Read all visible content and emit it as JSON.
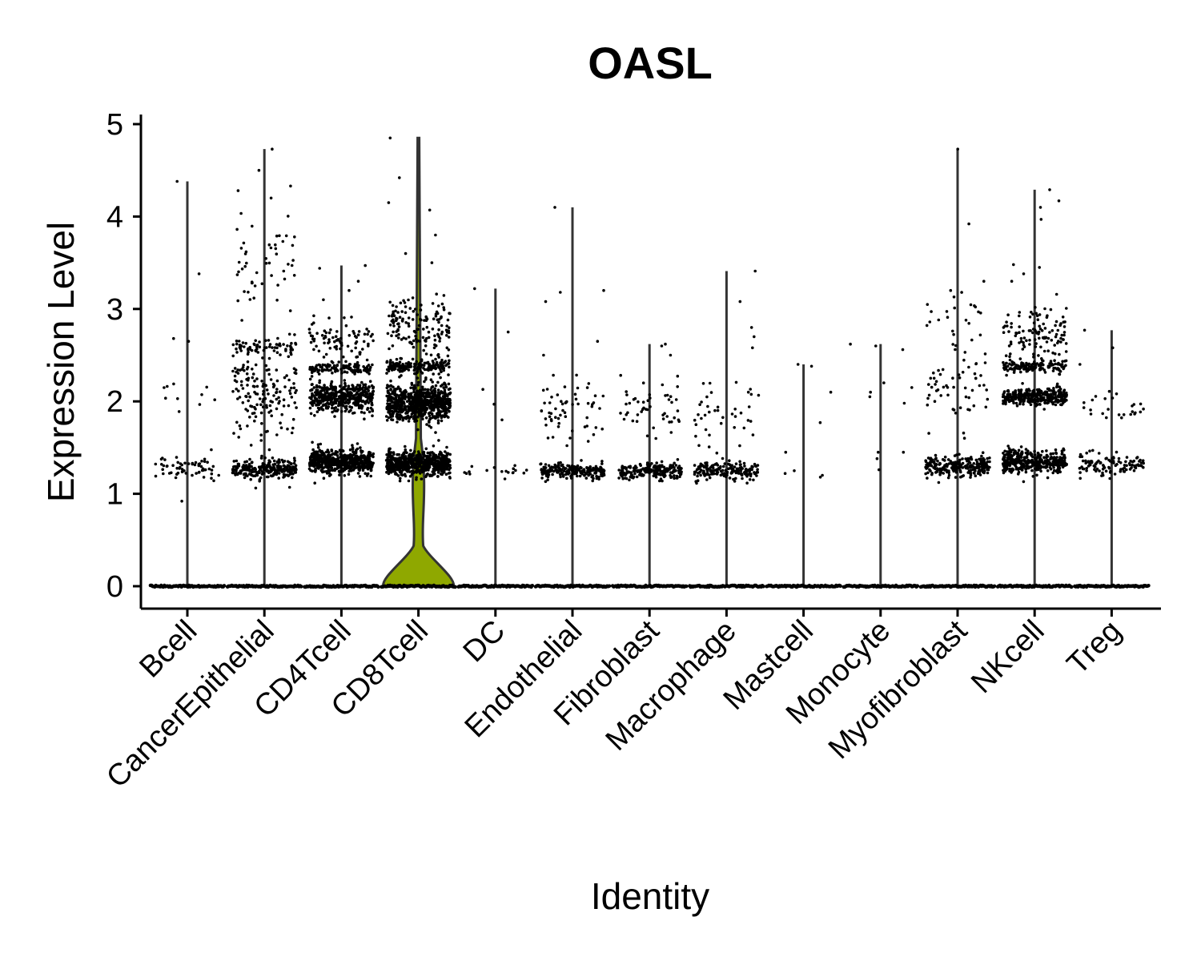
{
  "chart_data": {
    "type": "violin",
    "title": "OASL",
    "xlabel": "Identity",
    "ylabel": "Expression Level",
    "ylim": [
      -0.25,
      5.1
    ],
    "yticks": [
      0,
      1,
      2,
      3,
      4,
      5
    ],
    "yticks_text": [
      "0",
      "1",
      "2",
      "3",
      "4",
      "5"
    ],
    "grid": false,
    "legend": "none",
    "colors": {
      "violin_fill": "#8fa800",
      "violin_stroke": "#333333",
      "points": "#000000",
      "axis": "#000000"
    },
    "categories": [
      "Bcell",
      "CancerEpithelial",
      "CD4Tcell",
      "CD8Tcell",
      "DC",
      "Endothelial",
      "Fibroblast",
      "Macrophage",
      "Mastcell",
      "Monocyte",
      "Myofibroblast",
      "NKcell",
      "Treg"
    ],
    "series": [
      {
        "category": "Bcell",
        "max": 4.38,
        "zero_fraction": 0.96,
        "bands": [
          {
            "center": 1.28,
            "spread": 0.12,
            "count": 60
          },
          {
            "center": 2.05,
            "spread": 0.15,
            "count": 10
          }
        ],
        "outliers": [
          0.92,
          2.65,
          2.68,
          3.38,
          4.38
        ]
      },
      {
        "category": "CancerEpithelial",
        "max": 4.73,
        "zero_fraction": 0.9,
        "bands": [
          {
            "center": 1.27,
            "spread": 0.09,
            "count": 240
          },
          {
            "center": 2.1,
            "spread": 0.45,
            "count": 160
          },
          {
            "center": 2.6,
            "spread": 0.08,
            "count": 60
          },
          {
            "center": 3.5,
            "spread": 0.45,
            "count": 50
          }
        ],
        "outliers": [
          4.2,
          4.28,
          4.33,
          4.5,
          4.73
        ]
      },
      {
        "category": "CD4Tcell",
        "max": 3.47,
        "zero_fraction": 0.8,
        "bands": [
          {
            "center": 1.35,
            "spread": 0.11,
            "count": 550
          },
          {
            "center": 2.05,
            "spread": 0.14,
            "count": 450
          },
          {
            "center": 2.36,
            "spread": 0.05,
            "count": 120
          },
          {
            "center": 2.65,
            "spread": 0.2,
            "count": 80
          }
        ],
        "outliers": [
          3.1,
          3.2,
          3.3,
          3.44,
          3.47
        ]
      },
      {
        "category": "CD8Tcell",
        "max": 4.85,
        "zero_fraction": 0.55,
        "bands": [
          {
            "center": 1.33,
            "spread": 0.12,
            "count": 650
          },
          {
            "center": 1.98,
            "spread": 0.18,
            "count": 700
          },
          {
            "center": 2.38,
            "spread": 0.06,
            "count": 180
          },
          {
            "center": 2.8,
            "spread": 0.3,
            "count": 150
          }
        ],
        "outliers": [
          3.5,
          3.6,
          3.8,
          4.07,
          4.15,
          4.42,
          4.85
        ]
      },
      {
        "category": "DC",
        "max": 3.22,
        "zero_fraction": 0.97,
        "bands": [
          {
            "center": 1.24,
            "spread": 0.05,
            "count": 18
          }
        ],
        "outliers": [
          1.8,
          1.97,
          2.13,
          2.75,
          3.22
        ]
      },
      {
        "category": "Endothelial",
        "max": 4.1,
        "zero_fraction": 0.93,
        "bands": [
          {
            "center": 1.25,
            "spread": 0.07,
            "count": 200
          },
          {
            "center": 1.9,
            "spread": 0.35,
            "count": 60
          }
        ],
        "outliers": [
          2.5,
          2.65,
          3.08,
          3.18,
          3.2,
          4.1
        ]
      },
      {
        "category": "Fibroblast",
        "max": 2.62,
        "zero_fraction": 0.94,
        "bands": [
          {
            "center": 1.24,
            "spread": 0.08,
            "count": 200
          },
          {
            "center": 1.9,
            "spread": 0.3,
            "count": 50
          }
        ],
        "outliers": [
          2.5,
          2.6,
          2.62
        ]
      },
      {
        "category": "Macrophage",
        "max": 3.41,
        "zero_fraction": 0.94,
        "bands": [
          {
            "center": 1.25,
            "spread": 0.08,
            "count": 180
          },
          {
            "center": 1.9,
            "spread": 0.3,
            "count": 40
          }
        ],
        "outliers": [
          2.58,
          2.7,
          2.8,
          3.08,
          3.41
        ]
      },
      {
        "category": "Mastcell",
        "max": 2.4,
        "zero_fraction": 0.99,
        "bands": [],
        "outliers": [
          1.18,
          1.2,
          1.22,
          1.25,
          1.45,
          1.77,
          2.1,
          2.38,
          2.4
        ]
      },
      {
        "category": "Monocyte",
        "max": 2.62,
        "zero_fraction": 0.99,
        "bands": [],
        "outliers": [
          1.26,
          1.38,
          1.45,
          1.45,
          1.98,
          2.05,
          2.1,
          2.15,
          2.2,
          2.56,
          2.6,
          2.62
        ]
      },
      {
        "category": "Myofibroblast",
        "max": 4.73,
        "zero_fraction": 0.92,
        "bands": [
          {
            "center": 1.3,
            "spread": 0.1,
            "count": 260
          },
          {
            "center": 2.1,
            "spread": 0.45,
            "count": 60
          },
          {
            "center": 2.9,
            "spread": 0.3,
            "count": 20
          }
        ],
        "outliers": [
          3.2,
          3.3,
          3.92,
          4.73
        ]
      },
      {
        "category": "NKcell",
        "max": 4.29,
        "zero_fraction": 0.85,
        "bands": [
          {
            "center": 1.35,
            "spread": 0.11,
            "count": 400
          },
          {
            "center": 2.05,
            "spread": 0.08,
            "count": 300
          },
          {
            "center": 2.38,
            "spread": 0.06,
            "count": 120
          },
          {
            "center": 2.7,
            "spread": 0.3,
            "count": 120
          }
        ],
        "outliers": [
          3.3,
          3.38,
          3.45,
          3.48,
          3.97,
          4.1,
          4.17,
          4.29
        ]
      },
      {
        "category": "Treg",
        "max": 2.77,
        "zero_fraction": 0.93,
        "bands": [
          {
            "center": 1.32,
            "spread": 0.1,
            "count": 110
          },
          {
            "center": 1.95,
            "spread": 0.15,
            "count": 25
          }
        ],
        "outliers": [
          2.4,
          2.58,
          2.77
        ]
      }
    ]
  }
}
